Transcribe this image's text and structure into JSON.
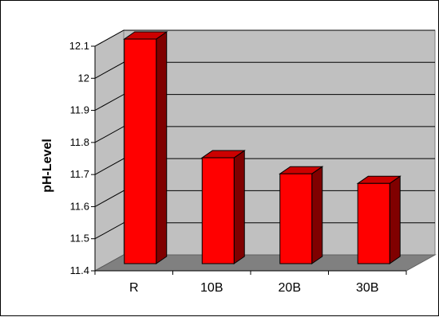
{
  "chart_data": {
    "type": "bar",
    "categories": [
      "R",
      "10B",
      "20B",
      "30B"
    ],
    "values": [
      12.1,
      11.73,
      11.68,
      11.65
    ],
    "ylabel": "pH-Level",
    "xlabel": "",
    "ylim": [
      11.4,
      12.1
    ],
    "yticks": [
      "11.4",
      "11.5",
      "11.6",
      "11.7",
      "11.8",
      "11.9",
      "12",
      "12.1"
    ],
    "grid": true,
    "legend": "none",
    "colors": {
      "bar_front": "#ff0000",
      "bar_top": "#cc0000",
      "bar_side": "#800000",
      "wall": "#c0c0c0",
      "floor": "#808080",
      "gridline": "#000000"
    }
  }
}
